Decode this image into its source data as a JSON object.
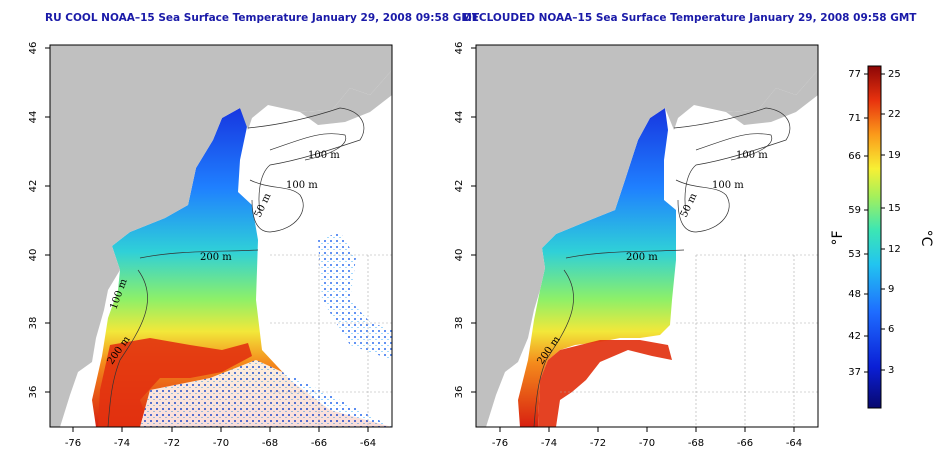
{
  "maps": [
    {
      "id": "left",
      "title": "RU COOL NOAA–15 Sea Surface Temperature January 29, 2008 09:58 GMT",
      "x_ticks": [
        "-76",
        "-74",
        "-72",
        "-70",
        "-68",
        "-66",
        "-64"
      ],
      "y_ticks": [
        "36",
        "38",
        "40",
        "42",
        "44",
        "46"
      ],
      "isobath_labels": [
        "100 m",
        "100 m",
        "50 m",
        "200 m",
        "100 m",
        "200 m"
      ],
      "clouds": true
    },
    {
      "id": "right",
      "title": "DECLOUDED NOAA–15 Sea Surface Temperature January 29, 2008 09:58 GMT",
      "x_ticks": [
        "-76",
        "-74",
        "-72",
        "-70",
        "-68",
        "-66",
        "-64"
      ],
      "y_ticks": [
        "36",
        "38",
        "40",
        "42",
        "44",
        "46"
      ],
      "isobath_labels": [
        "100 m",
        "100 m",
        "50 m",
        "200 m",
        "200 m"
      ],
      "clouds": false
    }
  ],
  "colorbar": {
    "fahrenheit_ticks": [
      "77",
      "71",
      "66",
      "59",
      "53",
      "48",
      "42",
      "37"
    ],
    "celsius_ticks": [
      "25",
      "22",
      "19",
      "15",
      "12",
      "9",
      "6",
      "3"
    ],
    "fahrenheit_unit": "°F",
    "celsius_unit": "°C",
    "colors": [
      "#08086e",
      "#0a1fd6",
      "#1e6cff",
      "#22c4f0",
      "#3ce6b4",
      "#a6f05a",
      "#f7f034",
      "#fb9a1a",
      "#e8320e",
      "#8c0606"
    ]
  },
  "colors": {
    "land": "#c0c0c0",
    "title": "#1a1aa8",
    "water_background": "#ffffff"
  }
}
